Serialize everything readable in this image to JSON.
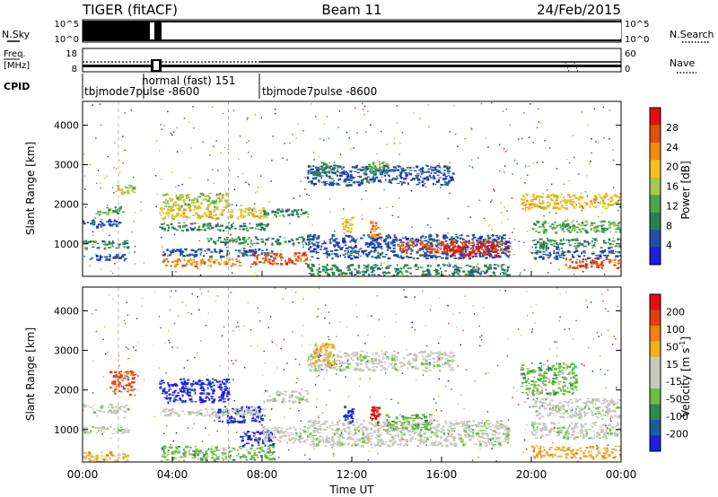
{
  "header": {
    "station_mode": "TIGER (fitACF)",
    "beam": "Beam 11",
    "date": "24/Feb/2015"
  },
  "noise_panel": {
    "left_label": "N.Sky",
    "right_label": "N.Search",
    "tick_top": "10^5",
    "tick_bottom": "10^0",
    "right_tick_top": "10^5",
    "right_tick_bottom": "10^0"
  },
  "freq_panel": {
    "left_label_1": "Freq.",
    "left_label_2": "[MHz]",
    "right_label": "Nave",
    "tick_top": "18",
    "tick_bottom": "8",
    "right_tick_top": "60",
    "right_tick_bottom": "0"
  },
  "cpid": {
    "label": "CPID",
    "modes": [
      {
        "text": "tbjmode7pulse -8600",
        "start_hour": 0.0
      },
      {
        "text": "normal (fast) 151",
        "start_hour": 2.8
      },
      {
        "text": "tbjmode7pulse -8600",
        "start_hour": 8.0
      }
    ]
  },
  "colors": {
    "power_scale": [
      "#1e1ee0",
      "#1e50a8",
      "#2e7f4f",
      "#4aa84a",
      "#a8c84a",
      "#f0c020",
      "#f08a10",
      "#e05010",
      "#e01010"
    ],
    "velocity_scale": [
      "#1e1ee0",
      "#1e5aa0",
      "#2e8a50",
      "#6ac040",
      "#c8c8c0",
      "#c8c8c0",
      "#f0b020",
      "#f08010",
      "#e04010",
      "#e01010"
    ]
  },
  "chart_data": [
    {
      "type": "heatmap",
      "name": "power",
      "ylabel": "Slant Range [km]",
      "ylim": [
        180,
        4600
      ],
      "xlim": [
        0,
        24
      ],
      "y_ticks": [
        1000,
        2000,
        3000,
        4000
      ],
      "colorbar": {
        "label": "Power [dB]",
        "range": [
          0,
          32
        ],
        "ticks": [
          4,
          8,
          12,
          16,
          20,
          24,
          28
        ]
      },
      "bands": [
        {
          "t0": 0.0,
          "t1": 1.7,
          "r0": 1450,
          "r1": 1650,
          "c": 1
        },
        {
          "t0": 0.0,
          "t1": 2.0,
          "r0": 900,
          "r1": 1100,
          "c": 2
        },
        {
          "t0": 0.0,
          "t1": 2.0,
          "r0": 600,
          "r1": 750,
          "c": 1
        },
        {
          "t0": 0.5,
          "t1": 1.8,
          "r0": 1750,
          "r1": 1950,
          "c": 3
        },
        {
          "t0": 1.5,
          "t1": 2.3,
          "r0": 2300,
          "r1": 2500,
          "c": 4
        },
        {
          "t0": 3.4,
          "t1": 8.2,
          "r0": 1350,
          "r1": 1550,
          "c": 2
        },
        {
          "t0": 3.4,
          "t1": 8.2,
          "r0": 1650,
          "r1": 1950,
          "c": 5
        },
        {
          "t0": 3.5,
          "t1": 6.5,
          "r0": 1950,
          "r1": 2300,
          "c": 4
        },
        {
          "t0": 3.5,
          "t1": 8.5,
          "r0": 700,
          "r1": 900,
          "c": 1
        },
        {
          "t0": 3.5,
          "t1": 7.0,
          "r0": 450,
          "r1": 650,
          "c": 6
        },
        {
          "t0": 5.5,
          "t1": 10.0,
          "r0": 1000,
          "r1": 1200,
          "c": 2
        },
        {
          "t0": 7.5,
          "t1": 10.0,
          "r0": 500,
          "r1": 800,
          "c": 7
        },
        {
          "t0": 8.0,
          "t1": 10.0,
          "r0": 1700,
          "r1": 1900,
          "c": 2
        },
        {
          "t0": 10.0,
          "t1": 16.5,
          "r0": 2500,
          "r1": 3000,
          "c": 1
        },
        {
          "t0": 10.2,
          "t1": 11.2,
          "r0": 2700,
          "r1": 3100,
          "c": 2
        },
        {
          "t0": 12.5,
          "t1": 13.6,
          "r0": 2800,
          "r1": 3100,
          "c": 3
        },
        {
          "t0": 10.0,
          "t1": 19.0,
          "r0": 650,
          "r1": 1250,
          "c": 1
        },
        {
          "t0": 14.0,
          "t1": 19.0,
          "r0": 800,
          "r1": 1100,
          "c": 7
        },
        {
          "t0": 16.0,
          "t1": 18.5,
          "r0": 700,
          "r1": 1000,
          "c": 8
        },
        {
          "t0": 11.5,
          "t1": 12.0,
          "r0": 1300,
          "r1": 1700,
          "c": 5
        },
        {
          "t0": 12.8,
          "t1": 13.2,
          "r0": 1200,
          "r1": 1600,
          "c": 6
        },
        {
          "t0": 10.0,
          "t1": 19.0,
          "r0": 200,
          "r1": 500,
          "c": 2
        },
        {
          "t0": 19.5,
          "t1": 24.0,
          "r0": 1900,
          "r1": 2300,
          "c": 5
        },
        {
          "t0": 20.0,
          "t1": 24.0,
          "r0": 1300,
          "r1": 1600,
          "c": 3
        },
        {
          "t0": 20.0,
          "t1": 24.0,
          "r0": 900,
          "r1": 1150,
          "c": 2
        },
        {
          "t0": 20.0,
          "t1": 24.0,
          "r0": 650,
          "r1": 850,
          "c": 1
        },
        {
          "t0": 21.5,
          "t1": 24.0,
          "r0": 400,
          "r1": 650,
          "c": 7
        }
      ]
    },
    {
      "type": "heatmap",
      "name": "velocity",
      "xlabel": "Time UT",
      "ylabel": "Slant Range [km]",
      "ylim": [
        180,
        4600
      ],
      "xlim": [
        0,
        24
      ],
      "y_ticks": [
        1000,
        2000,
        3000,
        4000
      ],
      "x_ticks": [
        "00:00",
        "04:00",
        "08:00",
        "12:00",
        "16:00",
        "20:00",
        "00:00"
      ],
      "colorbar": {
        "label": "Velocity [m s",
        "label_exponent": "-1",
        "label_close": "]",
        "range": [
          -250,
          250
        ],
        "ticks": [
          "200",
          "100",
          "50",
          "15",
          "-15",
          "-50",
          "-100",
          "-200"
        ]
      },
      "bands": [
        {
          "t0": 0.0,
          "t1": 2.0,
          "r0": 1450,
          "r1": 1650,
          "c": 4
        },
        {
          "t0": 0.0,
          "t1": 2.0,
          "r0": 900,
          "r1": 1100,
          "c": 4
        },
        {
          "t0": 0.0,
          "t1": 2.0,
          "r0": 200,
          "r1": 450,
          "c": 6
        },
        {
          "t0": 1.2,
          "t1": 2.3,
          "r0": 1900,
          "r1": 2500,
          "c": 8
        },
        {
          "t0": 3.4,
          "t1": 6.5,
          "r0": 1700,
          "r1": 2300,
          "c": 0
        },
        {
          "t0": 6.0,
          "t1": 8.0,
          "r0": 1200,
          "r1": 1600,
          "c": 0
        },
        {
          "t0": 7.0,
          "t1": 8.5,
          "r0": 600,
          "r1": 1000,
          "c": 0
        },
        {
          "t0": 3.4,
          "t1": 8.2,
          "r0": 1350,
          "r1": 1550,
          "c": 4
        },
        {
          "t0": 3.5,
          "t1": 8.5,
          "r0": 250,
          "r1": 600,
          "c": 3
        },
        {
          "t0": 8.0,
          "t1": 10.0,
          "r0": 1700,
          "r1": 2000,
          "c": 4
        },
        {
          "t0": 8.0,
          "t1": 10.0,
          "r0": 700,
          "r1": 1100,
          "c": 4
        },
        {
          "t0": 10.0,
          "t1": 16.5,
          "r0": 2500,
          "r1": 3000,
          "c": 4
        },
        {
          "t0": 10.2,
          "t1": 11.2,
          "r0": 2600,
          "r1": 3200,
          "c": 6
        },
        {
          "t0": 10.0,
          "t1": 19.0,
          "r0": 600,
          "r1": 1250,
          "c": 4
        },
        {
          "t0": 11.6,
          "t1": 12.0,
          "r0": 1200,
          "r1": 1600,
          "c": 0
        },
        {
          "t0": 12.8,
          "t1": 13.2,
          "r0": 1200,
          "r1": 1600,
          "c": 9
        },
        {
          "t0": 13.5,
          "t1": 15.5,
          "r0": 1000,
          "r1": 1400,
          "c": 3
        },
        {
          "t0": 19.5,
          "t1": 22.0,
          "r0": 1900,
          "r1": 2700,
          "c": 3
        },
        {
          "t0": 20.0,
          "t1": 24.0,
          "r0": 1300,
          "r1": 1800,
          "c": 4
        },
        {
          "t0": 20.0,
          "t1": 24.0,
          "r0": 800,
          "r1": 1200,
          "c": 4
        },
        {
          "t0": 20.0,
          "t1": 24.0,
          "r0": 300,
          "r1": 600,
          "c": 6
        }
      ]
    }
  ]
}
